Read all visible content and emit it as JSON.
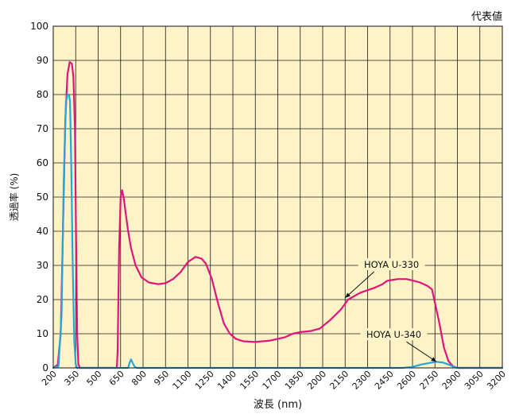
{
  "chart_data": {
    "type": "line",
    "title": "",
    "corner_note": "代表値",
    "xlabel": "波長 (nm)",
    "ylabel": "透過率 (%)",
    "xlim": [
      200,
      3200
    ],
    "ylim": [
      0,
      100
    ],
    "x_ticks": [
      "200",
      "350",
      "500",
      "650",
      "800",
      "950",
      "1100",
      "1250",
      "1400",
      "1550",
      "1700",
      "1850",
      "2000",
      "2150",
      "2300",
      "2450",
      "2600",
      "2750",
      "2900",
      "3050",
      "3200"
    ],
    "y_ticks": [
      "0",
      "10",
      "20",
      "30",
      "40",
      "50",
      "60",
      "70",
      "80",
      "90",
      "100"
    ],
    "grid": true,
    "plot_background": "#fdf3c6",
    "grid_color": "#1a1a1a",
    "series": [
      {
        "name": "HOYA U-330",
        "color": "#e0147c",
        "points": [
          [
            200,
            0
          ],
          [
            230,
            1
          ],
          [
            250,
            10
          ],
          [
            265,
            40
          ],
          [
            280,
            72
          ],
          [
            295,
            86
          ],
          [
            310,
            89.5
          ],
          [
            325,
            89
          ],
          [
            335,
            85
          ],
          [
            345,
            70
          ],
          [
            352,
            40
          ],
          [
            360,
            10
          ],
          [
            368,
            1
          ],
          [
            380,
            0
          ],
          [
            600,
            0
          ],
          [
            625,
            0
          ],
          [
            630,
            5
          ],
          [
            640,
            35
          ],
          [
            650,
            50
          ],
          [
            660,
            52
          ],
          [
            670,
            50
          ],
          [
            685,
            45
          ],
          [
            700,
            40
          ],
          [
            720,
            35
          ],
          [
            750,
            30
          ],
          [
            790,
            26.5
          ],
          [
            840,
            25
          ],
          [
            900,
            24.5
          ],
          [
            950,
            24.8
          ],
          [
            1000,
            26
          ],
          [
            1050,
            28
          ],
          [
            1100,
            31
          ],
          [
            1150,
            32.5
          ],
          [
            1190,
            32
          ],
          [
            1220,
            30.5
          ],
          [
            1260,
            26
          ],
          [
            1300,
            19
          ],
          [
            1340,
            13
          ],
          [
            1380,
            10
          ],
          [
            1420,
            8.5
          ],
          [
            1470,
            7.8
          ],
          [
            1550,
            7.6
          ],
          [
            1650,
            8
          ],
          [
            1750,
            9
          ],
          [
            1800,
            10
          ],
          [
            1850,
            10.5
          ],
          [
            1920,
            10.8
          ],
          [
            1980,
            11.5
          ],
          [
            2050,
            14
          ],
          [
            2120,
            17
          ],
          [
            2170,
            20
          ],
          [
            2250,
            22
          ],
          [
            2350,
            23.5
          ],
          [
            2400,
            24.5
          ],
          [
            2430,
            25.5
          ],
          [
            2500,
            26
          ],
          [
            2560,
            26
          ],
          [
            2600,
            25.6
          ],
          [
            2650,
            25
          ],
          [
            2700,
            24
          ],
          [
            2730,
            23
          ],
          [
            2750,
            19
          ],
          [
            2780,
            13
          ],
          [
            2810,
            6
          ],
          [
            2840,
            2
          ],
          [
            2870,
            0.5
          ],
          [
            2900,
            0
          ],
          [
            3200,
            0
          ]
        ],
        "annotation": {
          "text": "HOYA U-330",
          "at": [
            2150,
            20.5
          ],
          "label_at": [
            2460,
            30
          ]
        }
      },
      {
        "name": "HOYA U-340",
        "color": "#23a6d9",
        "points": [
          [
            200,
            0
          ],
          [
            235,
            0.5
          ],
          [
            255,
            15
          ],
          [
            270,
            55
          ],
          [
            285,
            78
          ],
          [
            295,
            80
          ],
          [
            305,
            80
          ],
          [
            312,
            78
          ],
          [
            320,
            60
          ],
          [
            330,
            30
          ],
          [
            340,
            8
          ],
          [
            350,
            1
          ],
          [
            360,
            0
          ],
          [
            700,
            0
          ],
          [
            710,
            1.5
          ],
          [
            720,
            2.5
          ],
          [
            730,
            1.5
          ],
          [
            745,
            0.3
          ],
          [
            760,
            0
          ],
          [
            2530,
            0
          ],
          [
            2600,
            0.3
          ],
          [
            2660,
            1
          ],
          [
            2720,
            1.5
          ],
          [
            2760,
            1.8
          ],
          [
            2800,
            1.6
          ],
          [
            2840,
            1
          ],
          [
            2870,
            0.4
          ],
          [
            2900,
            0
          ],
          [
            3200,
            0
          ]
        ],
        "annotation": {
          "text": "HOYA U-340",
          "at": [
            2760,
            1.8
          ],
          "label_at": [
            2475,
            9.5
          ]
        }
      }
    ]
  }
}
